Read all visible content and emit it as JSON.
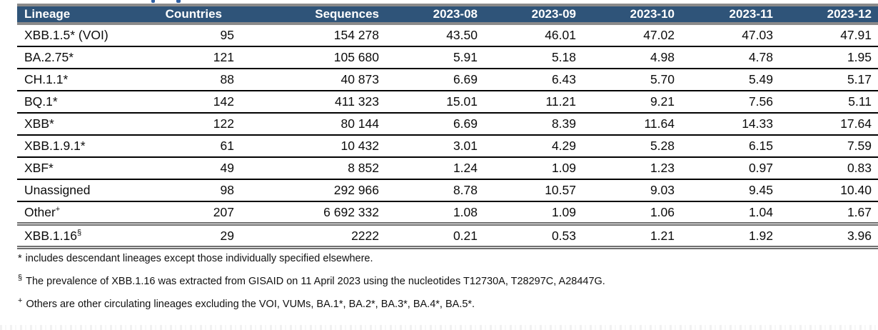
{
  "table": {
    "columns": [
      {
        "key": "lineage",
        "label": "Lineage",
        "align": "left"
      },
      {
        "key": "countries",
        "label": "Countries",
        "align": "right"
      },
      {
        "key": "sequences",
        "label": "Sequences",
        "align": "right"
      },
      {
        "key": "m0",
        "label": "2023-08",
        "align": "right"
      },
      {
        "key": "m1",
        "label": "2023-09",
        "align": "right"
      },
      {
        "key": "m2",
        "label": "2023-10",
        "align": "right"
      },
      {
        "key": "m3",
        "label": "2023-11",
        "align": "right"
      },
      {
        "key": "m4",
        "label": "2023-12",
        "align": "right"
      }
    ],
    "rows": [
      {
        "lineage": "XBB.1.5* (VOI)",
        "sup": "",
        "countries": "95",
        "sequences": "154 278",
        "m0": "43.50",
        "m1": "46.01",
        "m2": "47.02",
        "m3": "47.03",
        "m4": "47.91"
      },
      {
        "lineage": "BA.2.75*",
        "sup": "",
        "countries": "121",
        "sequences": "105 680",
        "m0": "5.91",
        "m1": "5.18",
        "m2": "4.98",
        "m3": "4.78",
        "m4": "1.95"
      },
      {
        "lineage": "CH.1.1*",
        "sup": "",
        "countries": "88",
        "sequences": "40 873",
        "m0": "6.69",
        "m1": "6.43",
        "m2": "5.70",
        "m3": "5.49",
        "m4": "5.17"
      },
      {
        "lineage": "BQ.1*",
        "sup": "",
        "countries": "142",
        "sequences": "411 323",
        "m0": "15.01",
        "m1": "11.21",
        "m2": "9.21",
        "m3": "7.56",
        "m4": "5.11"
      },
      {
        "lineage": "XBB*",
        "sup": "",
        "countries": "122",
        "sequences": "80 144",
        "m0": "6.69",
        "m1": "8.39",
        "m2": "11.64",
        "m3": "14.33",
        "m4": "17.64"
      },
      {
        "lineage": "XBB.1.9.1*",
        "sup": "",
        "countries": "61",
        "sequences": "10 432",
        "m0": "3.01",
        "m1": "4.29",
        "m2": "5.28",
        "m3": "6.15",
        "m4": "7.59"
      },
      {
        "lineage": "XBF*",
        "sup": "",
        "countries": "49",
        "sequences": "8 852",
        "m0": "1.24",
        "m1": "1.09",
        "m2": "1.23",
        "m3": "0.97",
        "m4": "0.83"
      },
      {
        "lineage": "Unassigned",
        "sup": "",
        "countries": "98",
        "sequences": "292 966",
        "m0": "8.78",
        "m1": "10.57",
        "m2": "9.03",
        "m3": "9.45",
        "m4": "10.40"
      },
      {
        "lineage": "Other",
        "sup": "+",
        "countries": "207",
        "sequences": "6 692 332",
        "m0": "1.08",
        "m1": "1.09",
        "m2": "1.06",
        "m3": "1.04",
        "m4": "1.67"
      },
      {
        "lineage": "XBB.1.16",
        "sup": "§",
        "countries": "29",
        "sequences": "2222",
        "m0": "0.21",
        "m1": "0.53",
        "m2": "1.21",
        "m3": "1.92",
        "m4": "3.96"
      }
    ]
  },
  "footnotes": [
    {
      "marker": "*",
      "superscript": false,
      "text": "includes descendant lineages except those individually specified elsewhere."
    },
    {
      "marker": "§",
      "superscript": true,
      "text": "The prevalence of XBB.1.16 was extracted from GISAID on 11 April 2023 using the nucleotides T12730A, T28297C, A28447G."
    },
    {
      "marker": "+",
      "superscript": true,
      "text": "Others are other circulating lineages excluding the VOI, VUMs, BA.1*, BA.2*, BA.3*, BA.4*, BA.5*."
    }
  ],
  "colors": {
    "header_background": "#2f5479",
    "header_text": "#ffffff",
    "header_band": "#8a8a8a",
    "row_separator": "#000000",
    "thick_separator": "#6f6f6f"
  },
  "chart_data": {
    "type": "table",
    "columns": [
      "Lineage",
      "Countries",
      "Sequences",
      "2023-08",
      "2023-09",
      "2023-10",
      "2023-11",
      "2023-12"
    ],
    "rows": [
      [
        "XBB.1.5* (VOI)",
        95,
        154278,
        43.5,
        46.01,
        47.02,
        47.03,
        47.91
      ],
      [
        "BA.2.75*",
        121,
        105680,
        5.91,
        5.18,
        4.98,
        4.78,
        1.95
      ],
      [
        "CH.1.1*",
        88,
        40873,
        6.69,
        6.43,
        5.7,
        5.49,
        5.17
      ],
      [
        "BQ.1*",
        142,
        411323,
        15.01,
        11.21,
        9.21,
        7.56,
        5.11
      ],
      [
        "XBB*",
        122,
        80144,
        6.69,
        8.39,
        11.64,
        14.33,
        17.64
      ],
      [
        "XBB.1.9.1*",
        61,
        10432,
        3.01,
        4.29,
        5.28,
        6.15,
        7.59
      ],
      [
        "XBF*",
        49,
        8852,
        1.24,
        1.09,
        1.23,
        0.97,
        0.83
      ],
      [
        "Unassigned",
        98,
        292966,
        8.78,
        10.57,
        9.03,
        9.45,
        10.4
      ],
      [
        "Other+",
        207,
        6692332,
        1.08,
        1.09,
        1.06,
        1.04,
        1.67
      ],
      [
        "XBB.1.16§",
        29,
        2222,
        0.21,
        0.53,
        1.21,
        1.92,
        3.96
      ]
    ]
  }
}
